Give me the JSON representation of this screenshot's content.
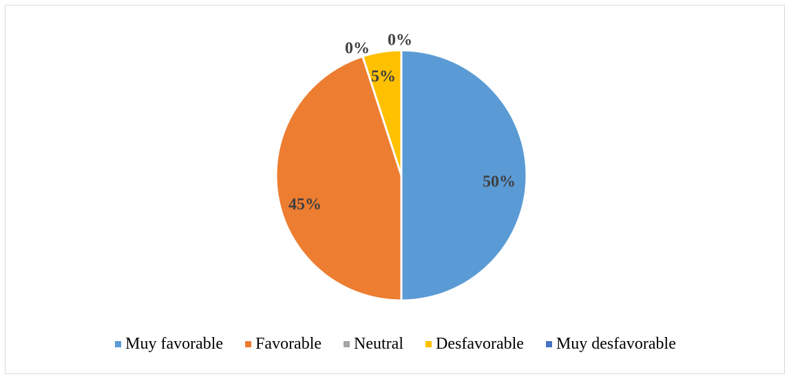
{
  "chart_data": {
    "type": "pie",
    "categories": [
      "Muy favorable",
      "Favorable",
      "Neutral",
      "Desfavorable",
      "Muy desfavorable"
    ],
    "values": [
      50,
      45,
      0,
      5,
      0
    ],
    "data_labels": [
      "50%",
      "45%",
      "0%",
      "5%",
      "0%"
    ],
    "colors": [
      "#5b9bd5",
      "#ed7d31",
      "#a5a5a5",
      "#ffc000",
      "#4472c4"
    ],
    "legend_position": "bottom",
    "start_angle": "12 o'clock",
    "direction": "clockwise"
  }
}
